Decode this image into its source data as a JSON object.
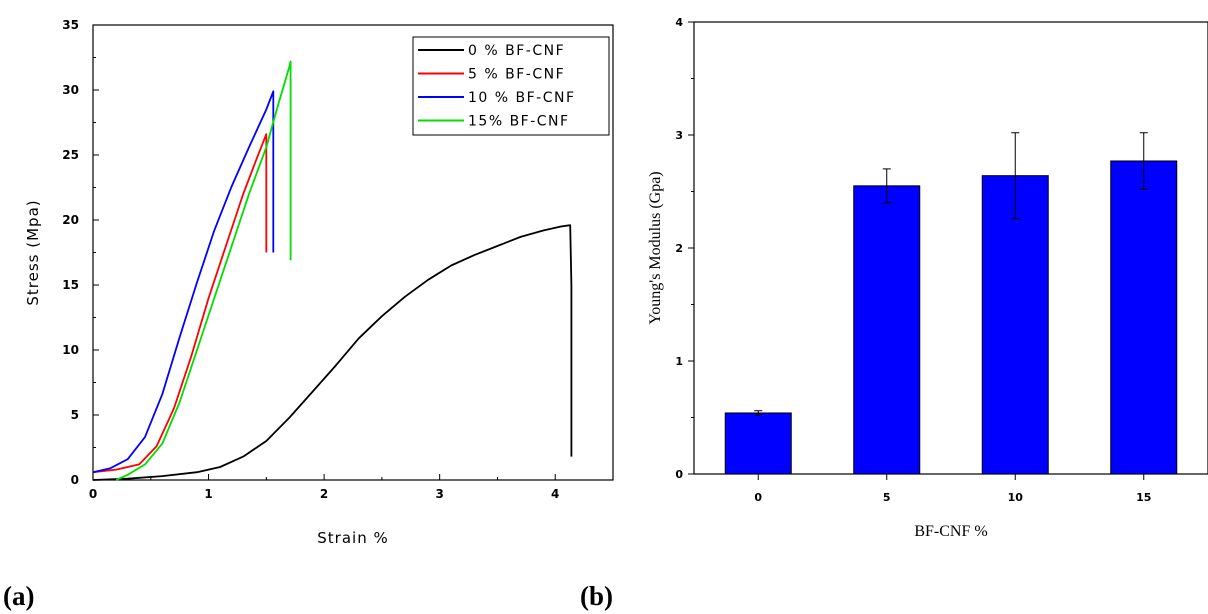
{
  "figure_labels": {
    "a": "(a)",
    "b": "(b)"
  },
  "chart_data": [
    {
      "type": "line",
      "xlabel": "Strain %",
      "ylabel": "Stress (Mpa)",
      "xlim": [
        0,
        4.5
      ],
      "ylim": [
        0,
        35
      ],
      "xticks": [
        0,
        1,
        2,
        3,
        4
      ],
      "yticks": [
        0,
        5,
        10,
        15,
        20,
        25,
        30,
        35
      ],
      "legend_position": "top-right",
      "series": [
        {
          "name": "0 % BF-CNF",
          "color": "#000000",
          "x": [
            0,
            0.3,
            0.6,
            0.9,
            1.1,
            1.3,
            1.5,
            1.7,
            1.9,
            2.1,
            2.3,
            2.5,
            2.7,
            2.9,
            3.1,
            3.3,
            3.5,
            3.7,
            3.9,
            4.05,
            4.13,
            4.14,
            4.14
          ],
          "y": [
            0,
            0.1,
            0.3,
            0.6,
            1.0,
            1.8,
            3.0,
            4.8,
            6.8,
            8.8,
            10.9,
            12.6,
            14.1,
            15.4,
            16.5,
            17.3,
            18.0,
            18.7,
            19.2,
            19.5,
            19.6,
            15,
            1.8
          ]
        },
        {
          "name": "5 % BF-CNF",
          "color": "#ff0000",
          "x": [
            0,
            0.2,
            0.4,
            0.55,
            0.7,
            0.85,
            1.0,
            1.15,
            1.3,
            1.42,
            1.5,
            1.5
          ],
          "y": [
            0.6,
            0.8,
            1.2,
            2.6,
            5.5,
            9.5,
            14.0,
            18.0,
            22.0,
            24.8,
            26.6,
            17.5
          ]
        },
        {
          "name": "10 % BF-CNF",
          "color": "#0000ff",
          "x": [
            0,
            0.15,
            0.3,
            0.45,
            0.6,
            0.75,
            0.9,
            1.05,
            1.2,
            1.35,
            1.5,
            1.56,
            1.56
          ],
          "y": [
            0.6,
            0.9,
            1.6,
            3.3,
            6.6,
            11.0,
            15.2,
            19.2,
            22.6,
            25.6,
            28.5,
            29.9,
            17.5
          ]
        },
        {
          "name": "15% BF-CNF",
          "color": "#00dd00",
          "x": [
            0.2,
            0.3,
            0.45,
            0.6,
            0.75,
            0.9,
            1.05,
            1.2,
            1.35,
            1.5,
            1.6,
            1.7,
            1.71,
            1.71
          ],
          "y": [
            0,
            0.4,
            1.2,
            2.8,
            6.0,
            10.0,
            14.0,
            18.0,
            22.0,
            25.6,
            28.8,
            31.8,
            32.2,
            16.9
          ]
        }
      ]
    },
    {
      "type": "bar",
      "xlabel": "BF-CNF %",
      "ylabel": "Young's Modulus (Gpa)",
      "categories": [
        "0",
        "5",
        "10",
        "15"
      ],
      "values": [
        0.54,
        2.55,
        2.64,
        2.77
      ],
      "errors": [
        0.02,
        0.15,
        0.38,
        0.25
      ],
      "ylim": [
        0,
        4
      ],
      "yticks": [
        0,
        1,
        2,
        3,
        4
      ],
      "bar_color": "#0000ff"
    }
  ]
}
